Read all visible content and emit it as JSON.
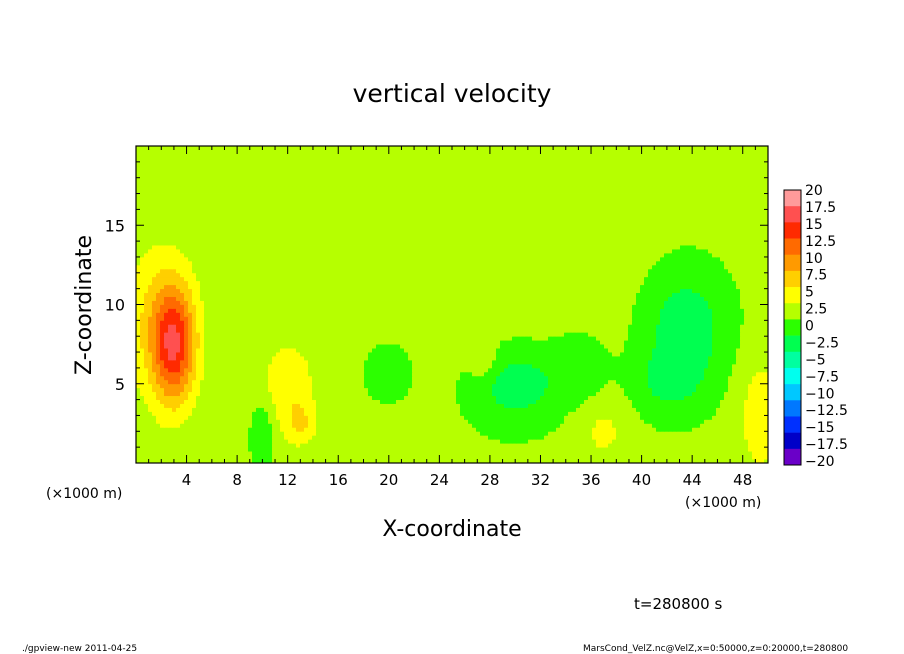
{
  "chart_data": {
    "type": "heatmap",
    "title": "vertical velocity",
    "xlabel": "X-coordinate",
    "ylabel": "Z-coordinate",
    "x_unit_label": "(×1000 m)",
    "y_unit_label": "(×1000 m)",
    "xlim": [
      0,
      50
    ],
    "ylim": [
      0,
      20
    ],
    "x_ticks": [
      4,
      8,
      12,
      16,
      20,
      24,
      28,
      32,
      36,
      40,
      44,
      48
    ],
    "y_ticks": [
      5,
      10,
      15
    ],
    "colorbar": {
      "levels": [
        "20",
        "17.5",
        "15",
        "12.5",
        "10",
        "7.5",
        "5",
        "2.5",
        "0",
        "−2.5",
        "−5",
        "−7.5",
        "−10",
        "−12.5",
        "−15",
        "−17.5",
        "−20"
      ],
      "colors": [
        "#ff9a9a",
        "#ff5050",
        "#ff2a00",
        "#ff6a00",
        "#ff9a00",
        "#ffcf00",
        "#ffff00",
        "#b6ff00",
        "#2cff00",
        "#00ff50",
        "#00ffa0",
        "#00ffee",
        "#00c8ff",
        "#0078ff",
        "#0030ff",
        "#0000c8",
        "#6a00c8"
      ]
    },
    "field": {
      "background_value": 0.5,
      "features": [
        {
          "x": 3.0,
          "z": 7.5,
          "sx": 1.2,
          "sz": 2.6,
          "value": 13
        },
        {
          "x": 1.5,
          "z": 9.0,
          "sx": 2.0,
          "sz": 3.5,
          "value": 4
        },
        {
          "x": 12.0,
          "z": 5.0,
          "sx": 1.6,
          "sz": 2.0,
          "value": 3.5
        },
        {
          "x": 13.0,
          "z": 2.5,
          "sx": 0.9,
          "sz": 1.0,
          "value": 4
        },
        {
          "x": 10.0,
          "z": 2.0,
          "sx": 0.6,
          "sz": 1.5,
          "value": -3
        },
        {
          "x": 20.0,
          "z": 6.0,
          "sx": 1.5,
          "sz": 1.5,
          "value": -2
        },
        {
          "x": 27.5,
          "z": 6.5,
          "sx": 0.7,
          "sz": 0.9,
          "value": 3
        },
        {
          "x": 30.0,
          "z": 5.0,
          "sx": 2.5,
          "sz": 1.8,
          "value": -4.5
        },
        {
          "x": 35.0,
          "z": 6.0,
          "sx": 1.5,
          "sz": 1.5,
          "value": -2.5
        },
        {
          "x": 37.0,
          "z": 2.0,
          "sx": 1.5,
          "sz": 1.5,
          "value": 2.5
        },
        {
          "x": 43.5,
          "z": 8.5,
          "sx": 2.2,
          "sz": 2.5,
          "value": -5
        },
        {
          "x": 42.0,
          "z": 5.0,
          "sx": 2.0,
          "sz": 1.5,
          "value": -3
        },
        {
          "x": 49.5,
          "z": 3.0,
          "sx": 1.2,
          "sz": 2.5,
          "value": 4
        },
        {
          "x": 25.0,
          "z": 12.0,
          "sx": 8.0,
          "sz": 4.0,
          "value": 1.5
        }
      ]
    }
  },
  "annotations": {
    "time": "t=280800 s",
    "footer_left": "./gpview-new   2011-04-25",
    "footer_right": "MarsCond_VelZ.nc@VelZ,x=0:50000,z=0:20000,t=280800"
  }
}
